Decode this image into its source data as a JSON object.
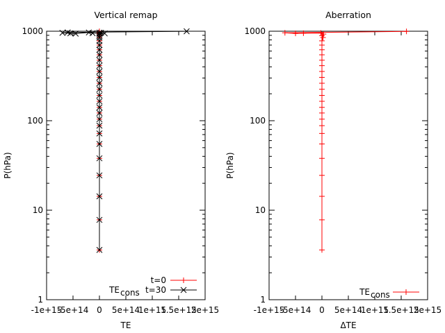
{
  "colors": {
    "red": "#ff0000",
    "black": "#000000"
  },
  "chart_data": [
    {
      "type": "line",
      "title": "Vertical remap",
      "xlabel": "TE",
      "ylabel": "P(hPa)",
      "xlim": [
        -1000000000000000.0,
        2000000000000000.0
      ],
      "ylim": [
        1,
        1000
      ],
      "yscale": "log",
      "grid": false,
      "legend_position": "bottom-right",
      "x_tick_labels": [
        "-1e+15",
        "-5e+14",
        "0",
        "5e+14",
        "1e+15",
        "1.5e+15",
        "2e+15"
      ],
      "y_tick_labels": [
        "1",
        "10",
        "100",
        "1000"
      ],
      "series": [
        {
          "name": "t=0",
          "label_prefix": "",
          "color": "#ff0000",
          "marker": "plus",
          "points": [
            [
              0,
              3.6
            ],
            [
              0,
              7.8
            ],
            [
              0,
              14.3
            ],
            [
              0,
              24.5
            ],
            [
              0,
              38
            ],
            [
              0,
              55
            ],
            [
              0,
              72
            ],
            [
              0,
              88
            ],
            [
              0,
              104
            ],
            [
              0,
              122
            ],
            [
              0,
              141
            ],
            [
              0,
              165
            ],
            [
              0,
              192
            ],
            [
              0,
              225
            ],
            [
              0,
              262
            ],
            [
              0,
              305
            ],
            [
              0,
              355
            ],
            [
              0,
              412
            ],
            [
              0,
              475
            ],
            [
              0,
              545
            ],
            [
              0,
              620
            ],
            [
              0,
              700
            ],
            [
              0,
              780
            ],
            [
              0,
              850
            ],
            [
              0,
              895
            ],
            [
              0,
              935
            ],
            [
              0,
              965
            ],
            [
              0,
              985
            ],
            [
              0,
              998
            ]
          ]
        },
        {
          "name": "t=30",
          "label_prefix": "TE",
          "label_sub": "cons",
          "color": "#000000",
          "marker": "x",
          "points": [
            [
              0,
              3.6
            ],
            [
              0,
              7.8
            ],
            [
              0,
              14.3
            ],
            [
              0,
              24.5
            ],
            [
              0,
              38
            ],
            [
              0,
              55
            ],
            [
              0,
              72
            ],
            [
              0,
              88
            ],
            [
              0,
              104
            ],
            [
              0,
              122
            ],
            [
              0,
              141
            ],
            [
              0,
              165
            ],
            [
              0,
              192
            ],
            [
              0,
              225
            ],
            [
              0,
              262
            ],
            [
              0,
              305
            ],
            [
              0,
              355
            ],
            [
              0,
              412
            ],
            [
              0,
              475
            ],
            [
              0,
              545
            ],
            [
              0,
              620
            ],
            [
              0,
              700
            ],
            [
              0,
              780
            ],
            [
              0,
              850
            ],
            [
              0,
              895
            ],
            [
              0,
              935
            ],
            [
              0,
              965
            ],
            [
              30000000000000.0,
              960
            ],
            [
              100000000000000.0,
              945
            ],
            [
              -130000000000000.0,
              950
            ],
            [
              -200000000000000.0,
              968
            ],
            [
              -450000000000000.0,
              940
            ],
            [
              -550000000000000.0,
              948
            ],
            [
              -700000000000000.0,
              958
            ],
            [
              -600000000000000.0,
              970
            ],
            [
              1650000000000000.0,
              998
            ]
          ]
        }
      ]
    },
    {
      "type": "line",
      "title": "Aberration",
      "xlabel": "ΔTE",
      "ylabel": "P(hPa)",
      "xlim": [
        -1000000000000000.0,
        2000000000000000.0
      ],
      "ylim": [
        1,
        1000
      ],
      "yscale": "log",
      "grid": false,
      "legend_position": "bottom-right",
      "x_tick_labels": [
        "-1e+15",
        "-5e+14",
        "0",
        "5e+14",
        "1e+15",
        "1.5e+15",
        "2e+15"
      ],
      "y_tick_labels": [
        "1",
        "10",
        "100",
        "1000"
      ],
      "series": [
        {
          "name": "",
          "label_prefix": "TE",
          "label_sub": "cons",
          "color": "#ff0000",
          "marker": "plus",
          "points": [
            [
              0,
              3.6
            ],
            [
              0,
              7.8
            ],
            [
              0,
              14.3
            ],
            [
              0,
              24.5
            ],
            [
              0,
              38
            ],
            [
              0,
              55
            ],
            [
              0,
              72
            ],
            [
              0,
              88
            ],
            [
              0,
              104
            ],
            [
              0,
              122
            ],
            [
              0,
              141
            ],
            [
              0,
              165
            ],
            [
              0,
              192
            ],
            [
              0,
              225
            ],
            [
              0,
              262
            ],
            [
              0,
              305
            ],
            [
              0,
              355
            ],
            [
              0,
              412
            ],
            [
              0,
              475
            ],
            [
              0,
              545
            ],
            [
              0,
              620
            ],
            [
              0,
              700
            ],
            [
              0,
              780
            ],
            [
              20000000000000.0,
              850
            ],
            [
              0,
              895
            ],
            [
              30000000000000.0,
              930
            ],
            [
              -20000000000000.0,
              955
            ],
            [
              -350000000000000.0,
              950
            ],
            [
              -500000000000000.0,
              945
            ],
            [
              -700000000000000.0,
              960
            ],
            [
              1600000000000000.0,
              995
            ]
          ]
        }
      ]
    }
  ]
}
